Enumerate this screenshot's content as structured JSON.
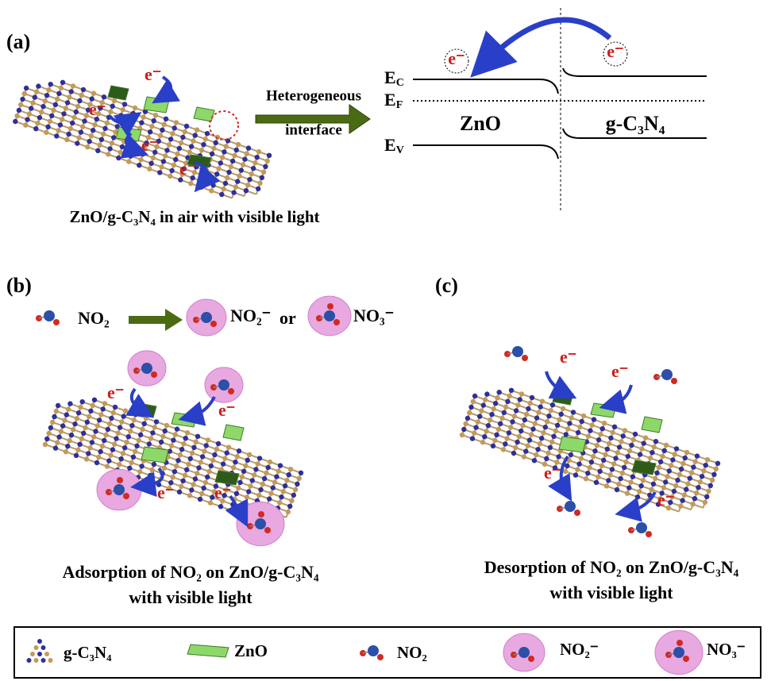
{
  "panel_a": {
    "label": "(a)",
    "arrow_text": [
      "Heterogeneous",
      "interface"
    ],
    "caption": "ZnO/g-C₃N₄ in air with visible light",
    "electron": "e⁻",
    "levels": [
      {
        "main": "E",
        "sub": "C"
      },
      {
        "main": "E",
        "sub": "F"
      },
      {
        "main": "E",
        "sub": "V"
      }
    ],
    "materials": [
      "ZnO",
      "g-C₃N₄"
    ]
  },
  "panel_b": {
    "label": "(b)",
    "reactant": "NO₂",
    "product_1": "NO₂⁻",
    "conjunction": "or",
    "product_2": "NO₃⁻",
    "electron": "e⁻",
    "caption": [
      "Adsorption of NO₂ on ZnO/g-C₃N₄",
      "with visible light"
    ]
  },
  "panel_c": {
    "label": "(c)",
    "electron": "e⁻",
    "caption": [
      "Desorption of NO₂ on ZnO/g-C₃N₄",
      "with visible light"
    ]
  },
  "legend": {
    "items": [
      "g-C₃N₄",
      "ZnO",
      "NO₂",
      "NO₂⁻",
      "NO₃⁻"
    ]
  }
}
